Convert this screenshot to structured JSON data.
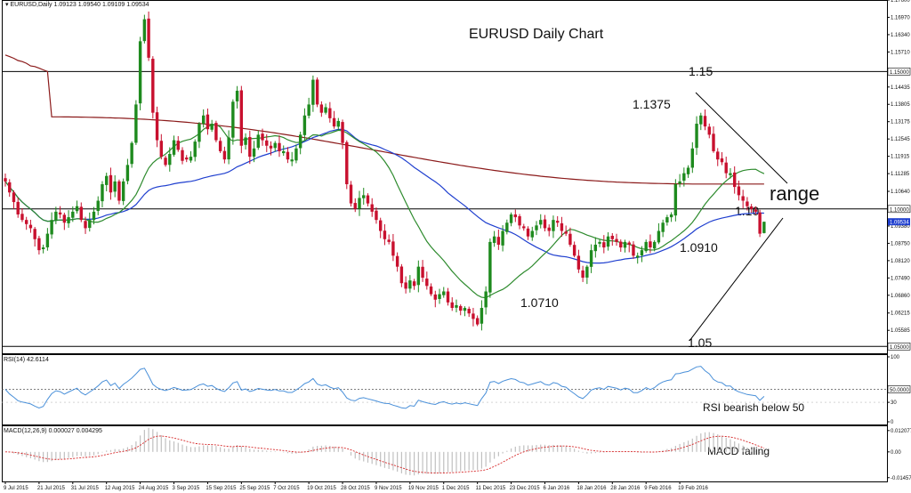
{
  "chart_data": [
    {
      "type": "candlestick",
      "info": "EURUSD,Daily  1.09123 1.09540 1.09109 1.09534",
      "title": "EURUSD Daily Chart",
      "ylim": [
        1.0475,
        1.176
      ],
      "price_ticks": [
        "1.17600",
        "1.16970",
        "1.16340",
        "1.15710",
        "1.15000",
        "1.14435",
        "1.13805",
        "1.13175",
        "1.12545",
        "1.11915",
        "1.11285",
        "1.10640",
        "1.10000",
        "1.09534",
        "1.09380",
        "1.08750",
        "1.08120",
        "1.07490",
        "1.06860",
        "1.06215",
        "1.05585",
        "1.05000"
      ],
      "horizontal_levels": [
        {
          "value": 1.15,
          "label": "1.15000"
        },
        {
          "value": 1.1,
          "label": "1.10000"
        },
        {
          "value": 1.05,
          "label": "1.05000"
        }
      ],
      "current_price": {
        "value": 1.09534,
        "label": "1.09534"
      },
      "x_dates": [
        "9 Jul 2015",
        "21 Jul 2015",
        "31 Jul 2015",
        "12 Aug 2015",
        "24 Aug 2015",
        "3 Sep 2015",
        "15 Sep 2015",
        "25 Sep 2015",
        "7 Oct 2015",
        "19 Oct 2015",
        "28 Oct 2015",
        "9 Nov 2015",
        "19 Nov 2015",
        "1 Dec 2015",
        "11 Dec 2015",
        "23 Dec 2015",
        "6 Jan 2016",
        "18 Jan 2016",
        "28 Jan 2016",
        "9 Feb 2016",
        "19 Feb 2016"
      ],
      "bars_per_date": 8,
      "closes": [
        1.11,
        1.106,
        1.1025,
        1.098,
        1.096,
        1.0945,
        1.093,
        1.089,
        1.085,
        1.086,
        1.091,
        1.096,
        1.099,
        1.098,
        1.095,
        1.097,
        1.099,
        1.101,
        1.096,
        1.093,
        1.096,
        1.099,
        1.103,
        1.109,
        1.112,
        1.106,
        1.11,
        1.103,
        1.11,
        1.116,
        1.124,
        1.138,
        1.161,
        1.169,
        1.155,
        1.135,
        1.125,
        1.119,
        1.116,
        1.12,
        1.125,
        1.1215,
        1.1175,
        1.118,
        1.119,
        1.1245,
        1.131,
        1.134,
        1.129,
        1.131,
        1.125,
        1.121,
        1.118,
        1.126,
        1.139,
        1.143,
        1.123,
        1.126,
        1.119,
        1.122,
        1.127,
        1.125,
        1.123,
        1.122,
        1.124,
        1.121,
        1.121,
        1.118,
        1.118,
        1.122,
        1.127,
        1.134,
        1.138,
        1.147,
        1.138,
        1.135,
        1.137,
        1.133,
        1.13,
        1.132,
        1.124,
        1.109,
        1.102,
        1.1,
        1.104,
        1.105,
        1.102,
        1.099,
        1.096,
        1.092,
        1.089,
        1.088,
        1.083,
        1.079,
        1.073,
        1.071,
        1.074,
        1.072,
        1.079,
        1.075,
        1.072,
        1.069,
        1.067,
        1.069,
        1.07,
        1.066,
        1.064,
        1.065,
        1.063,
        1.064,
        1.062,
        1.06,
        1.058,
        1.064,
        1.07,
        1.088,
        1.09,
        1.087,
        1.092,
        1.095,
        1.098,
        1.097,
        1.094,
        1.093,
        1.09,
        1.092,
        1.094,
        1.096,
        1.093,
        1.092,
        1.096,
        1.095,
        1.092,
        1.091,
        1.087,
        1.083,
        1.078,
        1.075,
        1.079,
        1.085,
        1.087,
        1.088,
        1.086,
        1.09,
        1.089,
        1.088,
        1.086,
        1.088,
        1.087,
        1.083,
        1.083,
        1.085,
        1.088,
        1.086,
        1.088,
        1.092,
        1.095,
        1.097,
        1.098,
        1.109,
        1.11,
        1.113,
        1.115,
        1.122,
        1.131,
        1.134,
        1.13,
        1.127,
        1.121,
        1.118,
        1.117,
        1.113,
        1.113,
        1.108,
        1.105,
        1.103,
        1.101,
        1.1,
        1.099,
        1.091,
        1.0953
      ]
    },
    {
      "type": "line",
      "title": "RSI(14) 42.6114",
      "ylim": [
        0,
        100
      ],
      "ticks": [
        "100",
        "50.0000",
        "30",
        "0"
      ],
      "level": {
        "value": 50
      },
      "annotation": "RSI bearish below 50"
    },
    {
      "type": "histogram+line",
      "title": "MACD(12,26,9) 0.000027 0.004295",
      "ylim": [
        -0.0152,
        0.0135
      ],
      "ticks": [
        "0.012077",
        "0.00",
        "-0.014573"
      ],
      "annotation": "MACD falling"
    }
  ],
  "annotations": {
    "level_115": "1.15",
    "level_110": "1.10",
    "level_105": "1.05",
    "high": "1.1375",
    "low_jan": "1.0710",
    "low_feb": "1.0910",
    "range": "range"
  },
  "colors": {
    "bull": "#1e8a1e",
    "bear": "#c8102e",
    "ma_red": "#8b1a1a",
    "ma_blue": "#1f3fcf",
    "ma_green": "#2e8b2e",
    "rsi": "#4a90d9",
    "macd_bars": "#c0c0c0",
    "macd_signal": "#d62728",
    "current_price_bg": "#1f3fcf"
  }
}
